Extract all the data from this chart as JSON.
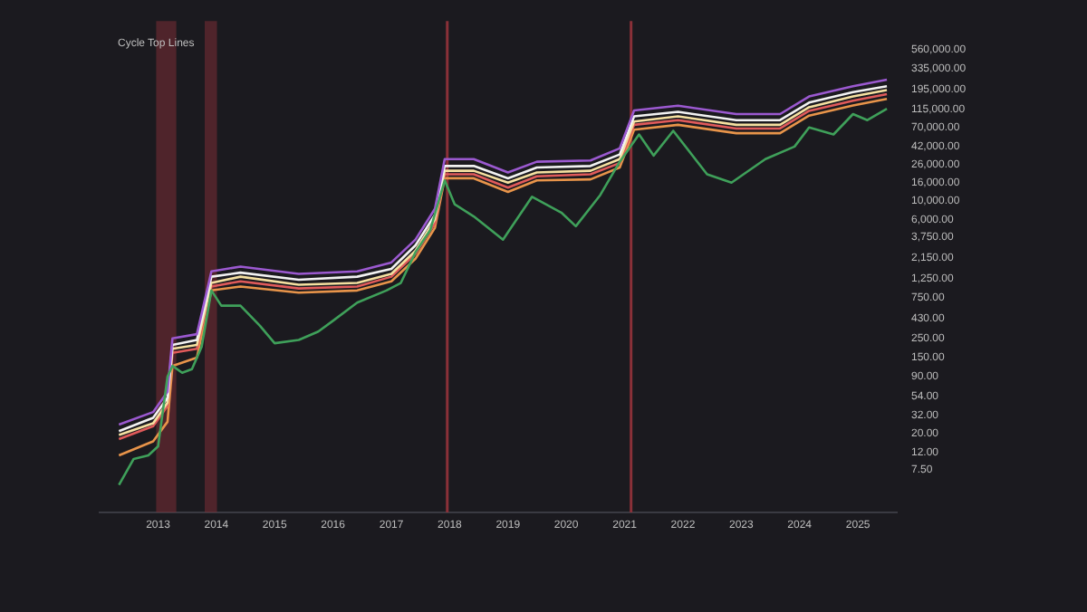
{
  "chart_data": {
    "type": "line",
    "title": "Cycle Top Lines",
    "log": "y",
    "grid": false,
    "legend": false,
    "marker": "none",
    "line_style": "solid",
    "xlim": [
      "2012-01",
      "2025-09"
    ],
    "xticks": [
      "2013",
      "2014",
      "2015",
      "2016",
      "2017",
      "2018",
      "2019",
      "2020",
      "2021",
      "2022",
      "2023",
      "2024",
      "2025"
    ],
    "ylim": [
      2.4,
      1200000
    ],
    "yticks": [
      {
        "value": 7.5,
        "label": "7.50"
      },
      {
        "value": 12,
        "label": "12.00"
      },
      {
        "value": 20,
        "label": "20.00"
      },
      {
        "value": 32,
        "label": "32.00"
      },
      {
        "value": 54,
        "label": "54.00"
      },
      {
        "value": 90,
        "label": "90.00"
      },
      {
        "value": 150,
        "label": "150.00"
      },
      {
        "value": 250,
        "label": "250.00"
      },
      {
        "value": 430,
        "label": "430.00"
      },
      {
        "value": 750,
        "label": "750.00"
      },
      {
        "value": 1250,
        "label": "1,250.00"
      },
      {
        "value": 2150,
        "label": "2,150.00"
      },
      {
        "value": 3750,
        "label": "3,750.00"
      },
      {
        "value": 6000,
        "label": "6,000.00"
      },
      {
        "value": 10000,
        "label": "10,000.00"
      },
      {
        "value": 16000,
        "label": "16,000.00"
      },
      {
        "value": 26000,
        "label": "26,000.00"
      },
      {
        "value": 42000,
        "label": "42,000.00"
      },
      {
        "value": 70000,
        "label": "70,000.00"
      },
      {
        "value": 115000,
        "label": "115,000.00"
      },
      {
        "value": 195000,
        "label": "195,000.00"
      },
      {
        "value": 335000,
        "label": "335,000.00"
      },
      {
        "value": 560000,
        "label": "560,000.00"
      }
    ],
    "bands": [
      {
        "axis": "x",
        "from": "2012-12-20",
        "to": "2013-04-25",
        "color": "#7a2e35"
      },
      {
        "axis": "x",
        "from": "2013-10-20",
        "to": "2014-01-05",
        "color": "#7a2e35"
      }
    ],
    "ref_lines": [
      {
        "axis": "x",
        "value": "2017-12-17",
        "color": "#8a3038"
      },
      {
        "axis": "x",
        "value": "2021-02-10",
        "color": "#8a3038"
      }
    ],
    "series": [
      {
        "color": "#3fa05a",
        "x": [
          "2012-05",
          "2012-08",
          "2012-11",
          "2013-01",
          "2013-03",
          "2013-04",
          "2013-06",
          "2013-08",
          "2013-10",
          "2013-12",
          "2014-02",
          "2014-06",
          "2014-10",
          "2015-01",
          "2015-06",
          "2015-10",
          "2016-01",
          "2016-06",
          "2016-12",
          "2017-03",
          "2017-06",
          "2017-09",
          "2017-12",
          "2018-02",
          "2018-06",
          "2018-12",
          "2019-06",
          "2019-12",
          "2020-03",
          "2020-08",
          "2020-12",
          "2021-04",
          "2021-07",
          "2021-11",
          "2022-06",
          "2022-11",
          "2023-06",
          "2023-12",
          "2024-03",
          "2024-08",
          "2024-12",
          "2025-03",
          "2025-07"
        ],
        "values": [
          5,
          10,
          11,
          14,
          90,
          120,
          100,
          110,
          200,
          900,
          600,
          600,
          350,
          220,
          240,
          300,
          400,
          650,
          900,
          1100,
          2500,
          4500,
          17000,
          9000,
          6500,
          3500,
          11000,
          7200,
          5000,
          11500,
          28000,
          58000,
          33000,
          64000,
          20000,
          16000,
          30000,
          42000,
          70000,
          58000,
          100000,
          85000,
          115000
        ]
      },
      {
        "color": "#9b59d0",
        "x": [
          "2012-05",
          "2012-12",
          "2013-03",
          "2013-04",
          "2013-09",
          "2013-12",
          "2014-06",
          "2015-06",
          "2016-06",
          "2017-01",
          "2017-06",
          "2017-10",
          "2017-12",
          "2018-06",
          "2019-01",
          "2019-07",
          "2020-06",
          "2020-12",
          "2021-03",
          "2021-12",
          "2022-12",
          "2023-09",
          "2024-03",
          "2024-12",
          "2025-07"
        ],
        "values": [
          25,
          35,
          60,
          250,
          280,
          1500,
          1700,
          1400,
          1500,
          1900,
          3500,
          8000,
          30000,
          30000,
          21000,
          28000,
          29000,
          40000,
          110000,
          125000,
          100000,
          100000,
          160000,
          210000,
          250000
        ]
      },
      {
        "color": "#f2f2f2",
        "x": [
          "2012-05",
          "2012-12",
          "2013-03",
          "2013-04",
          "2013-09",
          "2013-12",
          "2014-06",
          "2015-06",
          "2016-06",
          "2017-01",
          "2017-06",
          "2017-10",
          "2017-12",
          "2018-06",
          "2019-01",
          "2019-07",
          "2020-06",
          "2020-12",
          "2021-03",
          "2021-12",
          "2022-12",
          "2023-09",
          "2024-03",
          "2024-12",
          "2025-07"
        ],
        "values": [
          21,
          30,
          51,
          210,
          240,
          1300,
          1450,
          1200,
          1300,
          1600,
          3000,
          6800,
          25000,
          25000,
          18000,
          24000,
          25000,
          34000,
          94000,
          106000,
          85000,
          85000,
          136000,
          180000,
          210000
        ]
      },
      {
        "color": "#f5e0a0",
        "x": [
          "2012-05",
          "2012-12",
          "2013-03",
          "2013-04",
          "2013-09",
          "2013-12",
          "2014-06",
          "2015-06",
          "2016-06",
          "2017-01",
          "2017-06",
          "2017-10",
          "2017-12",
          "2018-06",
          "2019-01",
          "2019-07",
          "2020-06",
          "2020-12",
          "2021-03",
          "2021-12",
          "2022-12",
          "2023-09",
          "2024-03",
          "2024-12",
          "2025-07"
        ],
        "values": [
          19,
          26,
          45,
          190,
          210,
          1100,
          1300,
          1050,
          1100,
          1400,
          2600,
          6000,
          22000,
          22000,
          16000,
          21000,
          22000,
          30000,
          82000,
          94000,
          75000,
          75000,
          120000,
          160000,
          190000
        ]
      },
      {
        "color": "#e05a5a",
        "x": [
          "2012-05",
          "2012-12",
          "2013-03",
          "2013-04",
          "2013-09",
          "2013-12",
          "2014-06",
          "2015-06",
          "2016-06",
          "2017-01",
          "2017-06",
          "2017-10",
          "2017-12",
          "2018-06",
          "2019-01",
          "2019-07",
          "2020-06",
          "2020-12",
          "2021-03",
          "2021-12",
          "2022-12",
          "2023-09",
          "2024-03",
          "2024-12",
          "2025-07"
        ],
        "values": [
          17,
          24,
          41,
          170,
          190,
          1000,
          1150,
          950,
          1000,
          1300,
          2400,
          5400,
          20000,
          20000,
          14000,
          19000,
          20000,
          27000,
          75000,
          85000,
          68000,
          68000,
          109000,
          143000,
          170000
        ]
      },
      {
        "color": "#e8944a",
        "x": [
          "2012-05",
          "2012-12",
          "2013-03",
          "2013-04",
          "2013-09",
          "2013-12",
          "2014-06",
          "2015-06",
          "2016-06",
          "2017-01",
          "2017-06",
          "2017-10",
          "2017-12",
          "2018-06",
          "2019-01",
          "2019-07",
          "2020-06",
          "2020-12",
          "2021-03",
          "2021-12",
          "2022-12",
          "2023-09",
          "2024-03",
          "2024-12",
          "2025-07"
        ],
        "values": [
          11,
          16,
          27,
          120,
          150,
          900,
          1000,
          850,
          900,
          1150,
          2100,
          4800,
          18000,
          18000,
          12500,
          17000,
          17500,
          24000,
          66000,
          75000,
          60000,
          60000,
          96000,
          126000,
          150000
        ]
      }
    ]
  }
}
